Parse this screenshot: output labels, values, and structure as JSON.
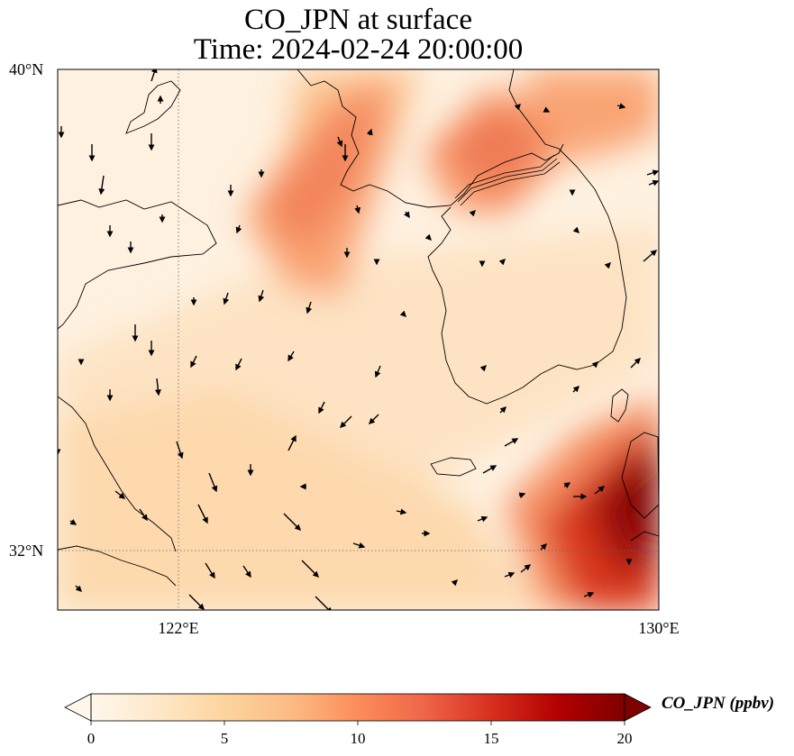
{
  "title": {
    "line1": "CO_JPN at surface",
    "line2": "Time: 2024-02-24 20:00:00"
  },
  "axes": {
    "lat_ticks": [
      "40°N",
      "32°N"
    ],
    "lon_ticks": [
      "122°E",
      "130°E"
    ],
    "lon_range": [
      120,
      130
    ],
    "lat_range": [
      31,
      40
    ],
    "gridlines": "dotted, at 122°E and 32°N"
  },
  "colorbar": {
    "label": "CO_JPN (ppbv)",
    "ticks": [
      "0",
      "5",
      "10",
      "15",
      "20"
    ],
    "range": [
      0,
      20
    ],
    "colormap": "OrRd",
    "extend": "both"
  },
  "colors": {
    "low": "#fff7ec",
    "mid": "#fdbb84",
    "high": "#d7301f",
    "max": "#7f0000"
  },
  "field": {
    "description_units": "ppbv",
    "plumes": [
      {
        "lon": 123.5,
        "lat": 38.4,
        "value": 12
      },
      {
        "lon": 127.0,
        "lat": 38.6,
        "value": 13
      },
      {
        "lon": 128.6,
        "lat": 39.5,
        "value": 11
      },
      {
        "lon": 129.5,
        "lat": 32.6,
        "value": 21
      },
      {
        "lon": 128.5,
        "lat": 32.0,
        "value": 16
      }
    ]
  }
}
